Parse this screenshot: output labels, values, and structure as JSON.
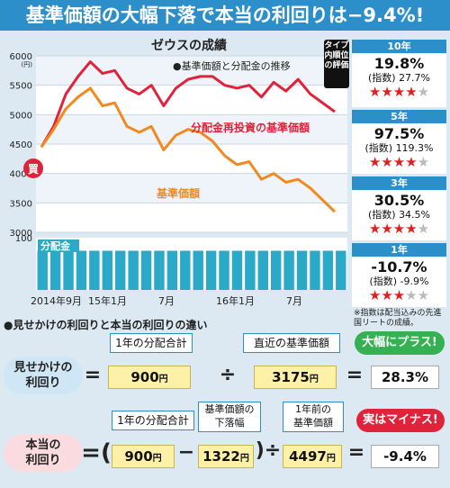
{
  "header": {
    "title": "基準価額の大幅下落で本当の利回りは−9.4%!"
  },
  "chart_header": {
    "title": "ゼウスの成績",
    "tag": "タイプ内順位の評価"
  },
  "colors": {
    "banner": "#2d8fc9",
    "reinvest_line": "#e0233a",
    "base_line": "#f08a1e",
    "dividend_bar": "#2aa9c9",
    "positive": "#35b153",
    "negative": "#e0233a"
  },
  "panels": [
    {
      "period": "10年",
      "main": "19.8%",
      "index": "(指数) 27.7%",
      "stars": 4
    },
    {
      "period": "5年",
      "main": "97.5%",
      "index": "(指数) 119.3%",
      "stars": 4
    },
    {
      "period": "3年",
      "main": "30.5%",
      "index": "(指数) 34.5%",
      "stars": 4
    },
    {
      "period": "1年",
      "main": "-10.7%",
      "index": "(指数) -9.9%",
      "stars": 3
    }
  ],
  "panel_note": "※指数は配当込みの先進国リートの成績。",
  "section_title": "●見せかけの利回りと本当の利回りの違い",
  "apparent": {
    "label_line1": "見せかけの",
    "label_line2": "利回り",
    "eq": "=",
    "callout_dividend": "1年の分配合計",
    "dividend_value": "900",
    "yen": "円",
    "div_op": "÷",
    "callout_nav": "直近の基準価額",
    "nav_value": "3175",
    "eq2": "=",
    "bubble": "大幅にプラス!",
    "result": "28.3%"
  },
  "real": {
    "label_line1": "本当の",
    "label_line2": "利回り",
    "eq": "=(",
    "callout_dividend": "1年の分配合計",
    "dividend_value": "900",
    "minus": "−",
    "callout_drop_1": "基準価額の",
    "callout_drop_2": "下落幅",
    "drop_value": "1322",
    "close_div": ")÷",
    "callout_prev_1": "1年前の",
    "callout_prev_2": "基準価額",
    "prev_value": "4497",
    "eq2": "=",
    "bubble": "実はマイナス!",
    "result": "-9.4%"
  },
  "chart_data": {
    "type": "line",
    "title": "●基準価額と分配金の推移",
    "yunit": "(円)",
    "ylim": [
      3000,
      6000
    ],
    "yticks": [
      6000,
      5500,
      5000,
      4500,
      4000,
      3500,
      3000
    ],
    "bar_ytick": "100",
    "xticks": [
      "2014年9月",
      "15年1月",
      "7月",
      "16年1月",
      "7月"
    ],
    "series": [
      {
        "name": "分配金再投資の基準価額",
        "values": [
          4450,
          4800,
          5350,
          5650,
          5900,
          5700,
          5750,
          5450,
          5350,
          5500,
          5150,
          5450,
          5600,
          5650,
          5650,
          5500,
          5450,
          5500,
          5300,
          5550,
          5400,
          5600,
          5350,
          5200,
          5050
        ]
      },
      {
        "name": "基準価額",
        "values": [
          4450,
          4750,
          5100,
          5300,
          5450,
          5150,
          5200,
          4800,
          4700,
          4800,
          4400,
          4650,
          4750,
          4700,
          4550,
          4300,
          4150,
          4200,
          3900,
          4000,
          3850,
          3900,
          3750,
          3550,
          3350
        ]
      }
    ],
    "dividend_bars": {
      "name": "分配金",
      "count": 24,
      "value": 75
    },
    "buy_marker": "買"
  }
}
